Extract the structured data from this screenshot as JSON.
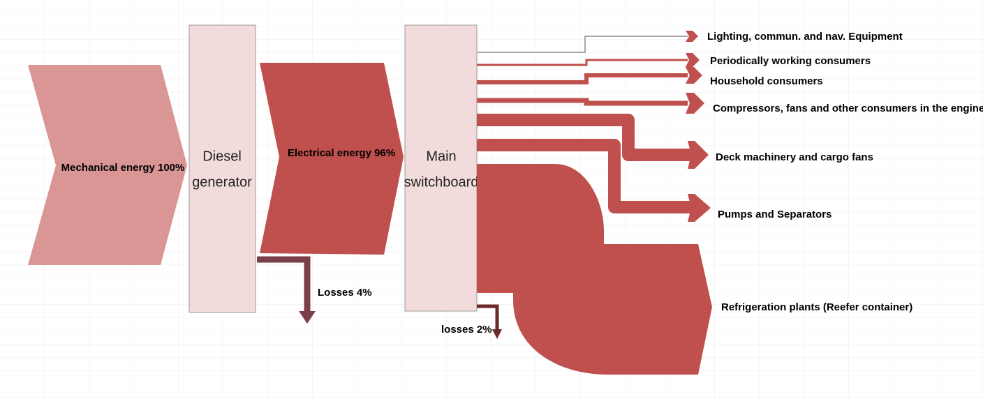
{
  "nodes": [
    {
      "label": "Mechanical energy 100%"
    },
    {
      "label_lines": [
        "Diesel",
        "generator"
      ]
    },
    {
      "label": "Electrical energy 96%"
    },
    {
      "label_lines": [
        "Main",
        "switchboard"
      ]
    }
  ],
  "flows": [
    {
      "label": "Losses 4%"
    },
    {
      "label": "Lighting, commun. and nav. Equipment"
    },
    {
      "label": "Periodically working consumers"
    },
    {
      "label": "Household consumers"
    },
    {
      "label": "Compressors, fans and other consumers in the engine"
    },
    {
      "label": "Deck machinery and cargo fans"
    },
    {
      "label": "Pumps and Separators"
    },
    {
      "label": "Refrigeration plants (Reefer container)"
    },
    {
      "label": "losses 2%"
    }
  ]
}
